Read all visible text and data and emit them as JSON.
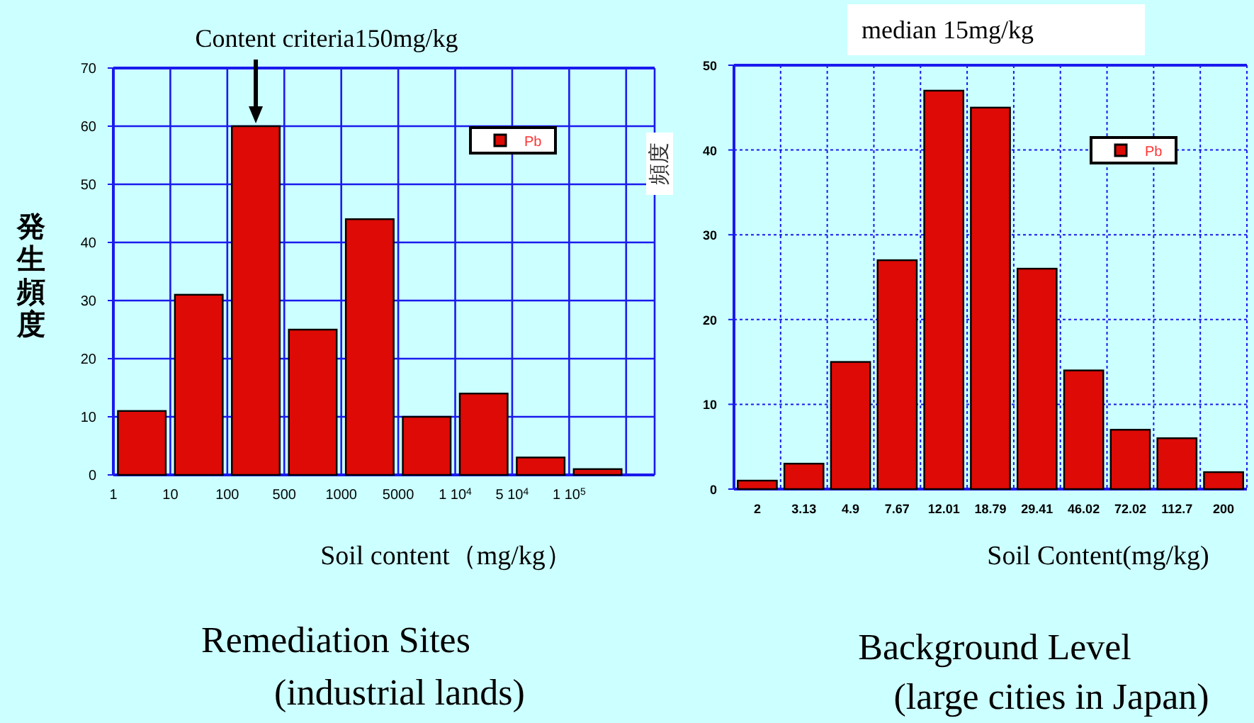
{
  "chart_data": [
    {
      "type": "bar",
      "title": "Remediation Sites",
      "subtitle": "(industrial lands)",
      "xlabel": "Soil content（mg/kg）",
      "ylabel": "発生頻度",
      "categories": [
        "1",
        "10",
        "100",
        "500",
        "1000",
        "5000",
        "1 10$^{4}$",
        "5 10$^{4}$",
        "1 10$^{5}$"
      ],
      "series": [
        {
          "name": "Pb",
          "color": "#dd0a05",
          "values": [
            11,
            31,
            60,
            25,
            44,
            10,
            14,
            3,
            1
          ]
        }
      ],
      "ylim": [
        0,
        70
      ],
      "yticks": [
        0,
        10,
        20,
        30,
        40,
        50,
        60,
        70
      ],
      "grid": true,
      "legend": "top right",
      "annotations": [
        {
          "text": "Content criteria150mg/kg",
          "x": "100",
          "y": 60
        }
      ]
    },
    {
      "type": "bar",
      "title": "Background Level",
      "subtitle": "(large cities in Japan)",
      "xlabel": "Soil Content(mg/kg)",
      "ylabel": "頻度",
      "categories": [
        "2",
        "3.13",
        "4.9",
        "7.67",
        "12.01",
        "18.79",
        "29.41",
        "46.02",
        "72.02",
        "112.7",
        "200"
      ],
      "series": [
        {
          "name": "Pb",
          "color": "#dd0a05",
          "values": [
            1,
            3,
            15,
            27,
            47,
            45,
            26,
            14,
            7,
            6,
            2
          ]
        }
      ],
      "ylim": [
        0,
        50
      ],
      "yticks": [
        0,
        10,
        20,
        30,
        40,
        50
      ],
      "grid": true,
      "legend": "top right",
      "annotations": [
        "median 15mg/kg"
      ]
    }
  ]
}
